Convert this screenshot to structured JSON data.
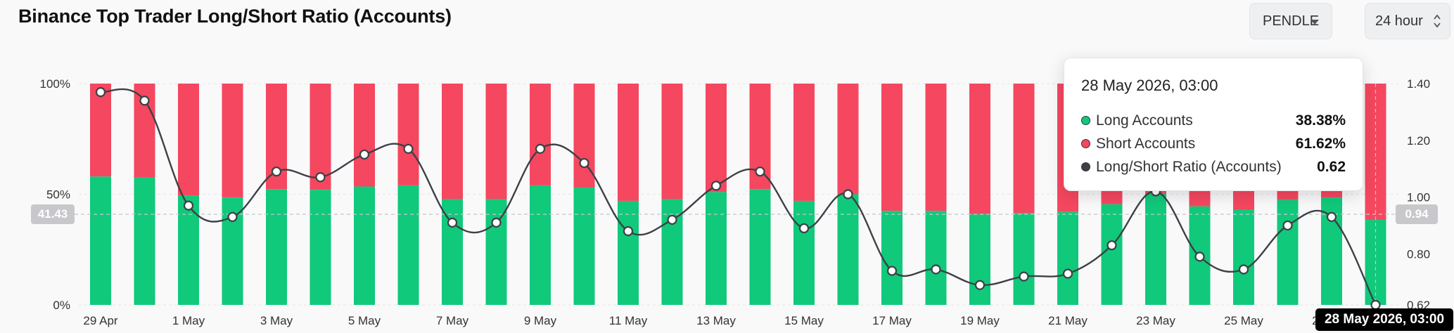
{
  "title": "Binance Top Trader Long/Short Ratio (Accounts)",
  "controls": {
    "symbol": "PENDLE",
    "interval": "24 hour"
  },
  "colors": {
    "long": "#10c97b",
    "short": "#f5475f",
    "line": "#3d4046",
    "grid": "#e6e6ea"
  },
  "tooltip": {
    "date": "28 May 2026, 03:00",
    "rows": [
      {
        "label": "Long Accounts",
        "value": "38.38%",
        "color": "#10c97b"
      },
      {
        "label": "Short Accounts",
        "value": "61.62%",
        "color": "#f5475f"
      },
      {
        "label": "Long/Short Ratio (Accounts)",
        "value": "0.62",
        "color": "#3d4046"
      }
    ]
  },
  "crosshair": {
    "x_label": "28 May 2026, 03:00",
    "left_label": "41.43",
    "right_label": "0.94"
  },
  "chart_data": {
    "type": "bar",
    "categories": [
      "29 Apr",
      "30 Apr",
      "1 May",
      "2 May",
      "3 May",
      "4 May",
      "5 May",
      "6 May",
      "7 May",
      "8 May",
      "9 May",
      "10 May",
      "11 May",
      "12 May",
      "13 May",
      "14 May",
      "15 May",
      "16 May",
      "17 May",
      "18 May",
      "19 May",
      "20 May",
      "21 May",
      "22 May",
      "23 May",
      "24 May",
      "25 May",
      "26 May",
      "27 May",
      "28 May"
    ],
    "x_tick_labels": [
      "29 Apr",
      "1 May",
      "3 May",
      "5 May",
      "7 May",
      "9 May",
      "11 May",
      "13 May",
      "15 May",
      "17 May",
      "19 May",
      "21 May",
      "23 May",
      "25 May",
      "27 May"
    ],
    "y_left": {
      "ticks": [
        "0%",
        "50%",
        "100%"
      ],
      "range": [
        0,
        100
      ]
    },
    "y_right": {
      "ticks": [
        "0.62",
        "0.80",
        "1.00",
        "1.20",
        "1.40"
      ],
      "range": [
        0.62,
        1.4
      ]
    },
    "series": [
      {
        "name": "Long Accounts",
        "axis": "left",
        "values": [
          58,
          57.5,
          49.5,
          48.5,
          52.3,
          52,
          53.5,
          54,
          47.8,
          47.8,
          54,
          53,
          47,
          47.8,
          51,
          52.3,
          47,
          50,
          42.5,
          42.5,
          41,
          41.5,
          42,
          45.5,
          50.5,
          44.5,
          43,
          47.5,
          48.5,
          38.38
        ]
      },
      {
        "name": "Short Accounts",
        "axis": "left",
        "values": [
          42,
          42.5,
          50.5,
          51.5,
          47.7,
          48,
          46.5,
          46,
          52.2,
          52.2,
          46,
          47,
          53,
          52.2,
          49,
          47.7,
          53,
          50,
          57.5,
          57.5,
          59,
          58.5,
          58,
          54.5,
          49.5,
          55.5,
          57,
          52.5,
          51.5,
          61.62
        ]
      },
      {
        "name": "Long/Short Ratio (Accounts)",
        "axis": "right",
        "values": [
          1.37,
          1.34,
          0.97,
          0.93,
          1.09,
          1.07,
          1.15,
          1.17,
          0.91,
          0.91,
          1.17,
          1.12,
          0.88,
          0.92,
          1.04,
          1.09,
          0.89,
          1.01,
          0.74,
          0.745,
          0.69,
          0.72,
          0.73,
          0.83,
          1.02,
          0.79,
          0.745,
          0.9,
          0.93,
          0.62
        ]
      }
    ]
  }
}
